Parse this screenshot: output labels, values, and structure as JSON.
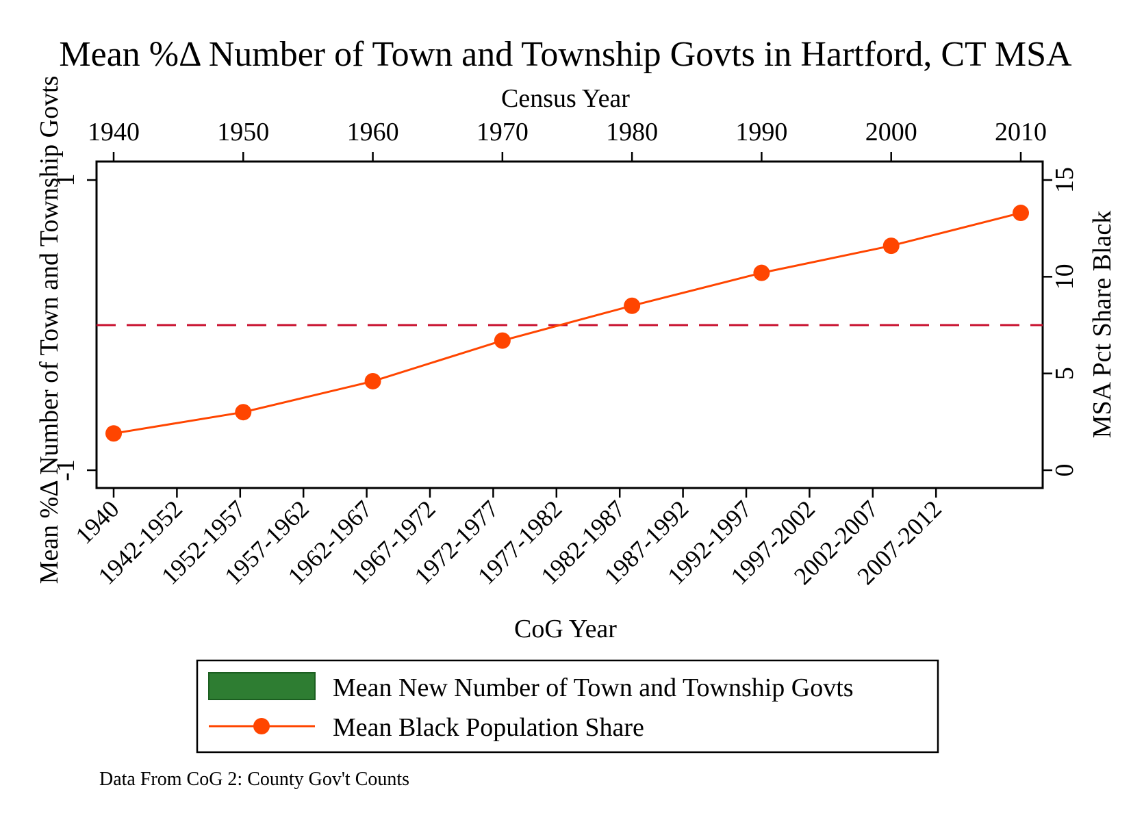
{
  "chart_data": {
    "type": "line",
    "title": "Mean %Δ Number of Town and Township Govts in Hartford, CT MSA",
    "top_axis": {
      "label": "Census Year",
      "ticks": [
        "1940",
        "1950",
        "1960",
        "1970",
        "1980",
        "1990",
        "2000",
        "2010"
      ]
    },
    "bottom_axis": {
      "label": "CoG Year",
      "ticks": [
        "1940",
        "1942-1952",
        "1952-1957",
        "1957-1962",
        "1962-1967",
        "1967-1972",
        "1972-1977",
        "1977-1982",
        "1982-1987",
        "1987-1992",
        "1992-1997",
        "1997-2002",
        "2002-2007",
        "2007-2012"
      ]
    },
    "left_axis": {
      "label": "Mean %Δ Number of Town and Township Govts",
      "ticks": [
        "-1",
        "1"
      ],
      "ylim": [
        -1,
        1
      ]
    },
    "right_axis": {
      "label": "MSA Pct Share Black",
      "ticks": [
        "0",
        "5",
        "10",
        "15"
      ],
      "ylim": [
        0,
        15
      ]
    },
    "series": [
      {
        "name": "Mean New Number of Town and Township Govts",
        "type": "bar",
        "axis": "left",
        "color": "#2e7d32",
        "values": []
      },
      {
        "name": "Mean Black Population Share",
        "type": "line",
        "axis": "right",
        "color": "#ff4500",
        "marker": "circle",
        "x": [
          1940,
          1950,
          1960,
          1970,
          1980,
          1990,
          2000,
          2010
        ],
        "values": [
          1.9,
          3.0,
          4.6,
          6.7,
          8.5,
          10.2,
          11.6,
          13.3
        ]
      }
    ],
    "reference_line": {
      "axis": "left",
      "value": 0,
      "color": "#c8102e",
      "style": "dashed"
    },
    "legend_position": "bottom",
    "grid": false,
    "note": "Data From CoG 2: County Gov't Counts"
  }
}
